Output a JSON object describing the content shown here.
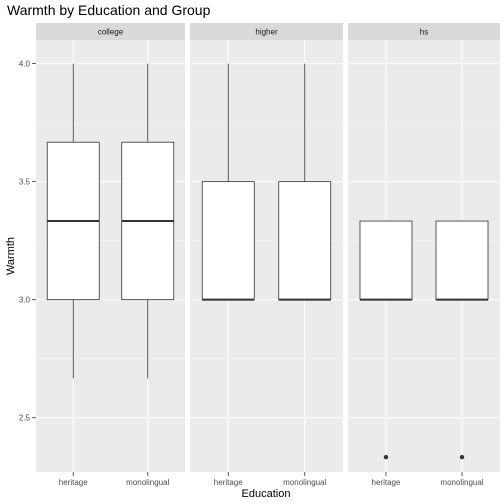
{
  "chart_data": {
    "type": "boxplot",
    "title": "Warmth by Education and Group",
    "xlabel": "Education",
    "ylabel": "Warmth",
    "ylim": [
      2.27,
      4.1
    ],
    "y_ticks": [
      2.5,
      3.0,
      3.5,
      4.0
    ],
    "y_tick_labels": [
      "2.5",
      "3.0",
      "3.5",
      "4.0"
    ],
    "categories": [
      "heritage",
      "monolingual"
    ],
    "grid": true,
    "colors": {
      "panel_bg": "#ebebeb",
      "strip_bg": "#d9d9d9",
      "grid_major": "#ffffff",
      "box_fill": "#ffffff",
      "box_line": "#333333",
      "outlier": "#333333"
    },
    "facets": [
      {
        "label": "college",
        "boxes": [
          {
            "category": "heritage",
            "min": 2.667,
            "q1": 3.0,
            "median": 3.333,
            "q3": 3.667,
            "max": 4.0,
            "outliers": []
          },
          {
            "category": "monolingual",
            "min": 2.667,
            "q1": 3.0,
            "median": 3.333,
            "q3": 3.667,
            "max": 4.0,
            "outliers": []
          }
        ]
      },
      {
        "label": "higher",
        "boxes": [
          {
            "category": "heritage",
            "min": 3.0,
            "q1": 3.0,
            "median": 3.0,
            "q3": 3.5,
            "max": 4.0,
            "outliers": []
          },
          {
            "category": "monolingual",
            "min": 3.0,
            "q1": 3.0,
            "median": 3.0,
            "q3": 3.5,
            "max": 4.0,
            "outliers": []
          }
        ]
      },
      {
        "label": "hs",
        "boxes": [
          {
            "category": "heritage",
            "min": 3.0,
            "q1": 3.0,
            "median": 3.0,
            "q3": 3.333,
            "max": 3.333,
            "outliers": [
              2.333
            ]
          },
          {
            "category": "monolingual",
            "min": 3.0,
            "q1": 3.0,
            "median": 3.0,
            "q3": 3.333,
            "max": 3.333,
            "outliers": [
              2.333
            ]
          }
        ]
      }
    ]
  }
}
